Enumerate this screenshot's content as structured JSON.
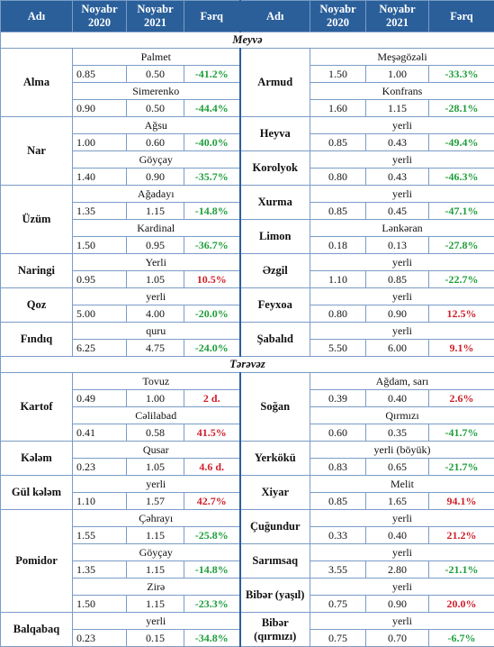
{
  "headers": [
    "Adı",
    "Noyabr 2020",
    "Noyabr 2021",
    "Fərq",
    "Adı",
    "Noyabr 2020",
    "Noyabr 2021",
    "Fərq"
  ],
  "sections": {
    "fruit": "Meyvə",
    "vegetable": "Tərəvəz"
  },
  "colors": {
    "header": "#2a5f9a",
    "positive": "#d0202a",
    "negative": "#1e9e3a",
    "border": "#7a9cc7"
  },
  "left": {
    "alma": {
      "name": "Alma",
      "v1": "Palmet",
      "v1_2020": "0.85",
      "v1_2021": "0.50",
      "v1_diff": "-41.2%",
      "v2": "Simerenko",
      "v2_2020": "0.90",
      "v2_2021": "0.50",
      "v2_diff": "-44.4%"
    },
    "nar": {
      "name": "Nar",
      "v1": "Ağsu",
      "v1_2020": "1.00",
      "v1_2021": "0.60",
      "v1_diff": "-40.0%",
      "v2": "Göyçay",
      "v2_2020": "1.40",
      "v2_2021": "0.90",
      "v2_diff": "-35.7%"
    },
    "uzum": {
      "name": "Üzüm",
      "v1": "Ağadayı",
      "v1_2020": "1.35",
      "v1_2021": "1.15",
      "v1_diff": "-14.8%",
      "v2": "Kardinal",
      "v2_2020": "1.50",
      "v2_2021": "0.95",
      "v2_diff": "-36.7%"
    },
    "naringi": {
      "name": "Naringi",
      "v1": "Yerli",
      "p2020": "0.95",
      "p2021": "1.05",
      "diff": "10.5%"
    },
    "qoz": {
      "name": "Qoz",
      "v1": "yerli",
      "p2020": "5.00",
      "p2021": "4.00",
      "diff": "-20.0%"
    },
    "findiq": {
      "name": "Fındıq",
      "v1": "quru",
      "p2020": "6.25",
      "p2021": "4.75",
      "diff": "-24.0%"
    },
    "kartof": {
      "name": "Kartof",
      "v1": "Tovuz",
      "v1_2020": "0.49",
      "v1_2021": "1.00",
      "v1_diff": "2 d.",
      "v2": "Cəlilabad",
      "v2_2020": "0.41",
      "v2_2021": "0.58",
      "v2_diff": "41.5%"
    },
    "kelem": {
      "name": "Kələm",
      "v1": "Qusar",
      "p2020": "0.23",
      "p2021": "1.05",
      "diff": "4.6 d."
    },
    "gulkelem": {
      "name": "Gül kələm",
      "v1": "yerli",
      "p2020": "1.10",
      "p2021": "1.57",
      "diff": "42.7%"
    },
    "pomidor": {
      "name": "Pomidor",
      "v1": "Çəhrayı",
      "v1_2020": "1.55",
      "v1_2021": "1.15",
      "v1_diff": "-25.8%",
      "v2": "Göyçay",
      "v2_2020": "1.35",
      "v2_2021": "1.15",
      "v2_diff": "-14.8%",
      "v3": "Zirə",
      "v3_2020": "1.50",
      "v3_2021": "1.15",
      "v3_diff": "-23.3%"
    },
    "balqabaq": {
      "name": "Balqabaq",
      "v1": "yerli",
      "p2020": "0.23",
      "p2021": "0.15",
      "diff": "-34.8%"
    }
  },
  "right": {
    "armud": {
      "name": "Armud",
      "v1": "Meşəgözəli",
      "v1_2020": "1.50",
      "v1_2021": "1.00",
      "v1_diff": "-33.3%",
      "v2": "Konfrans",
      "v2_2020": "1.60",
      "v2_2021": "1.15",
      "v2_diff": "-28.1%"
    },
    "heyva": {
      "name": "Heyva",
      "v1": "yerli",
      "p2020": "0.85",
      "p2021": "0.43",
      "diff": "-49.4%"
    },
    "korolyok": {
      "name": "Korolyok",
      "v1": "yerli",
      "p2020": "0.80",
      "p2021": "0.43",
      "diff": "-46.3%"
    },
    "xurma": {
      "name": "Xurma",
      "v1": "yerli",
      "p2020": "0.85",
      "p2021": "0.45",
      "diff": "-47.1%"
    },
    "limon": {
      "name": "Limon",
      "v1": "Lənkəran",
      "p2020": "0.18",
      "p2021": "0.13",
      "diff": "-27.8%"
    },
    "ezgil": {
      "name": "Əzgil",
      "v1": "yerli",
      "p2020": "1.10",
      "p2021": "0.85",
      "diff": "-22.7%"
    },
    "feyxoa": {
      "name": "Feyxoa",
      "v1": "yerli",
      "p2020": "0.80",
      "p2021": "0.90",
      "diff": "12.5%"
    },
    "sabalid": {
      "name": "Şabalıd",
      "v1": "yerli",
      "p2020": "5.50",
      "p2021": "6.00",
      "diff": "9.1%"
    },
    "sogan": {
      "name": "Soğan",
      "v1": "Ağdam, sarı",
      "v1_2020": "0.39",
      "v1_2021": "0.40",
      "v1_diff": "2.6%",
      "v2": "Qırmızı",
      "v2_2020": "0.60",
      "v2_2021": "0.35",
      "v2_diff": "-41.7%"
    },
    "yerkoku": {
      "name": "Yerkökü",
      "v1": "yerli (böyük)",
      "p2020": "0.83",
      "p2021": "0.65",
      "diff": "-21.7%"
    },
    "xiyar": {
      "name": "Xiyar",
      "v1": "Melit",
      "p2020": "0.85",
      "p2021": "1.65",
      "diff": "94.1%"
    },
    "cugundur": {
      "name": "Çuğundur",
      "v1": "yerli",
      "p2020": "0.33",
      "p2021": "0.40",
      "diff": "21.2%"
    },
    "sarimsaq": {
      "name": "Sarımsaq",
      "v1": "yerli",
      "p2020": "3.55",
      "p2021": "2.80",
      "diff": "-21.1%"
    },
    "biber_yasil": {
      "name": "Bibər (yaşıl)",
      "v1": "yerli",
      "p2020": "0.75",
      "p2021": "0.90",
      "diff": "20.0%"
    },
    "biber_qirmizi": {
      "name": "Bibər (qırmızı)",
      "v1": "yerli",
      "p2020": "0.75",
      "p2021": "0.70",
      "diff": "-6.7%"
    }
  }
}
